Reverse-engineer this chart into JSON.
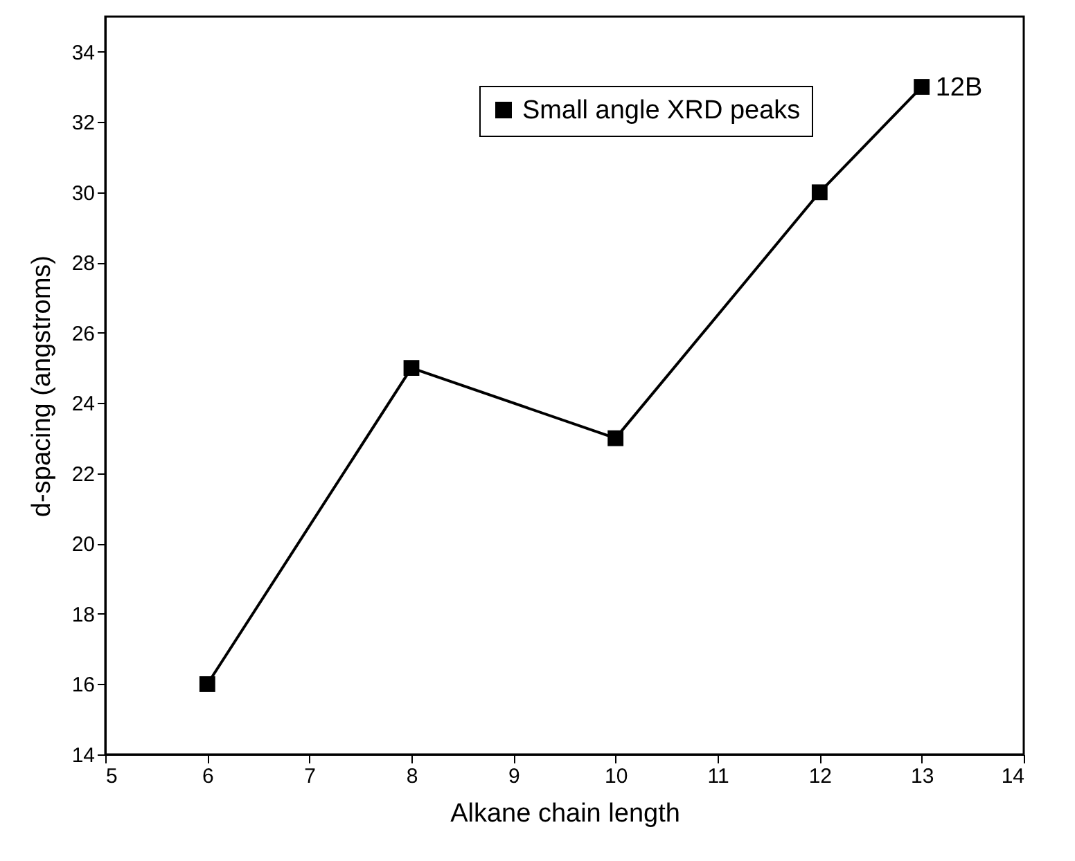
{
  "chart_data": {
    "type": "line",
    "xlabel": "Alkane chain length",
    "ylabel": "d-spacing (angstroms)",
    "x": [
      6,
      8,
      10,
      12,
      13
    ],
    "series": [
      {
        "name": "Small angle XRD peaks",
        "color": "#000000",
        "values": [
          16,
          25,
          23,
          30,
          33
        ]
      }
    ],
    "xlim": [
      5,
      14
    ],
    "xticks": [
      5,
      6,
      7,
      8,
      9,
      10,
      11,
      12,
      13,
      14
    ],
    "ylim": [
      14,
      35
    ],
    "yticks": [
      14,
      16,
      18,
      20,
      22,
      24,
      26,
      28,
      30,
      32,
      34
    ],
    "annotations": [
      {
        "text": "12B",
        "x": 13,
        "y": 33
      }
    ],
    "marker": "square",
    "line_style": "solid",
    "grid": false,
    "legend": "top right"
  }
}
